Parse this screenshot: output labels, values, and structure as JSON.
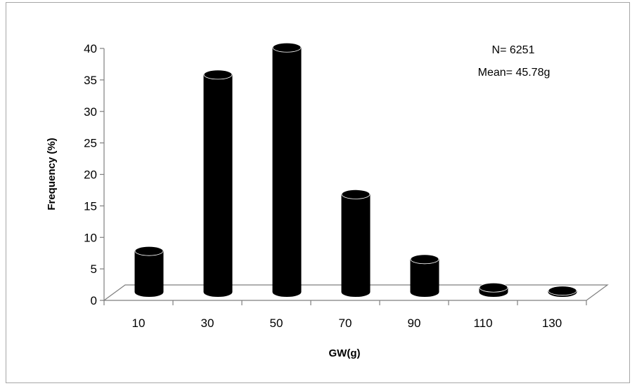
{
  "chart_data": {
    "type": "bar",
    "style": "3d-cylinder",
    "categories": [
      "10",
      "30",
      "50",
      "70",
      "90",
      "110",
      "130"
    ],
    "values": [
      6.5,
      34.5,
      38.8,
      15.5,
      5.2,
      0.7,
      0.2
    ],
    "xlabel": "GW(g)",
    "ylabel": "Frequency (%)",
    "ylim": [
      0,
      40
    ],
    "yticks": [
      0,
      5,
      10,
      15,
      20,
      25,
      30,
      35,
      40
    ],
    "grid": false,
    "legend": null,
    "annotations": [
      "N= 6251",
      "Mean= 45.78g"
    ],
    "bar_color": "#000000"
  }
}
